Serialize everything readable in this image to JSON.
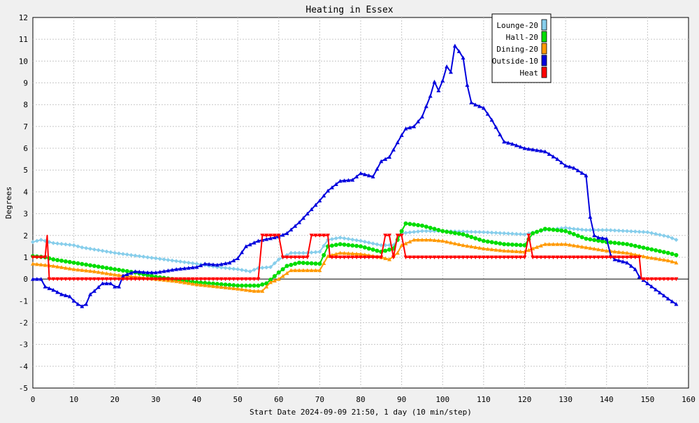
{
  "chart_data": {
    "type": "line",
    "title": "Heating in Essex",
    "xlabel": "Start Date 2024-09-09 21:50, 1 day (10 min/step)",
    "ylabel": "Degrees",
    "xlim": [
      0,
      160
    ],
    "ylim": [
      -5,
      12
    ],
    "x_ticks": [
      0,
      10,
      20,
      30,
      40,
      50,
      60,
      70,
      80,
      90,
      100,
      110,
      120,
      130,
      140,
      150,
      160
    ],
    "y_ticks": [
      -5,
      -4,
      -3,
      -2,
      -1,
      0,
      1,
      2,
      3,
      4,
      5,
      6,
      7,
      8,
      9,
      10,
      11,
      12
    ],
    "grid": true,
    "legend_position": "top-right",
    "series": [
      {
        "name": "Lounge-20",
        "color": "#87ceeb",
        "marker": "diamond",
        "points": [
          [
            0,
            1.7
          ],
          [
            2,
            1.8
          ],
          [
            5,
            1.65
          ],
          [
            10,
            1.55
          ],
          [
            12,
            1.45
          ],
          [
            20,
            1.2
          ],
          [
            30,
            0.95
          ],
          [
            40,
            0.7
          ],
          [
            45,
            0.55
          ],
          [
            50,
            0.45
          ],
          [
            53,
            0.35
          ],
          [
            55,
            0.5
          ],
          [
            58,
            0.55
          ],
          [
            60,
            0.9
          ],
          [
            63,
            1.2
          ],
          [
            67,
            1.2
          ],
          [
            70,
            1.25
          ],
          [
            72,
            1.8
          ],
          [
            75,
            1.9
          ],
          [
            80,
            1.75
          ],
          [
            85,
            1.55
          ],
          [
            88,
            1.55
          ],
          [
            90,
            2.1
          ],
          [
            95,
            2.2
          ],
          [
            100,
            2.2
          ],
          [
            110,
            2.15
          ],
          [
            120,
            2.05
          ],
          [
            125,
            2.25
          ],
          [
            130,
            2.35
          ],
          [
            132,
            2.3
          ],
          [
            135,
            2.25
          ],
          [
            140,
            2.25
          ],
          [
            145,
            2.2
          ],
          [
            150,
            2.15
          ],
          [
            155,
            1.95
          ],
          [
            157,
            1.8
          ]
        ]
      },
      {
        "name": "Hall-20",
        "color": "#00dd00",
        "marker": "circle",
        "points": [
          [
            0,
            1.05
          ],
          [
            3,
            1.0
          ],
          [
            5,
            0.9
          ],
          [
            10,
            0.75
          ],
          [
            15,
            0.6
          ],
          [
            20,
            0.45
          ],
          [
            25,
            0.3
          ],
          [
            30,
            0.1
          ],
          [
            40,
            -0.15
          ],
          [
            50,
            -0.3
          ],
          [
            55,
            -0.3
          ],
          [
            57,
            -0.2
          ],
          [
            60,
            0.3
          ],
          [
            62,
            0.6
          ],
          [
            65,
            0.75
          ],
          [
            70,
            0.7
          ],
          [
            72,
            1.5
          ],
          [
            75,
            1.6
          ],
          [
            80,
            1.5
          ],
          [
            85,
            1.25
          ],
          [
            88,
            1.4
          ],
          [
            90,
            2.2
          ],
          [
            91,
            2.55
          ],
          [
            95,
            2.45
          ],
          [
            100,
            2.2
          ],
          [
            105,
            2.05
          ],
          [
            110,
            1.75
          ],
          [
            115,
            1.6
          ],
          [
            120,
            1.55
          ],
          [
            122,
            2.1
          ],
          [
            125,
            2.3
          ],
          [
            130,
            2.2
          ],
          [
            135,
            1.85
          ],
          [
            140,
            1.7
          ],
          [
            145,
            1.6
          ],
          [
            150,
            1.4
          ],
          [
            155,
            1.2
          ],
          [
            157,
            1.1
          ]
        ]
      },
      {
        "name": "Dining-20",
        "color": "#ff9900",
        "marker": "triangle",
        "points": [
          [
            0,
            0.7
          ],
          [
            5,
            0.6
          ],
          [
            10,
            0.45
          ],
          [
            15,
            0.35
          ],
          [
            20,
            0.2
          ],
          [
            25,
            0.1
          ],
          [
            30,
            0.0
          ],
          [
            35,
            -0.1
          ],
          [
            40,
            -0.25
          ],
          [
            45,
            -0.35
          ],
          [
            50,
            -0.45
          ],
          [
            54,
            -0.55
          ],
          [
            56,
            -0.55
          ],
          [
            58,
            -0.15
          ],
          [
            60,
            0.0
          ],
          [
            63,
            0.4
          ],
          [
            67,
            0.4
          ],
          [
            70,
            0.4
          ],
          [
            72,
            1.05
          ],
          [
            75,
            1.2
          ],
          [
            80,
            1.15
          ],
          [
            85,
            1.0
          ],
          [
            87,
            0.9
          ],
          [
            89,
            1.2
          ],
          [
            90,
            1.55
          ],
          [
            93,
            1.8
          ],
          [
            97,
            1.8
          ],
          [
            100,
            1.75
          ],
          [
            105,
            1.55
          ],
          [
            110,
            1.4
          ],
          [
            115,
            1.3
          ],
          [
            120,
            1.25
          ],
          [
            122,
            1.4
          ],
          [
            125,
            1.6
          ],
          [
            130,
            1.6
          ],
          [
            135,
            1.45
          ],
          [
            140,
            1.3
          ],
          [
            145,
            1.2
          ],
          [
            150,
            1.0
          ],
          [
            155,
            0.85
          ],
          [
            157,
            0.75
          ]
        ]
      },
      {
        "name": "Outside-10",
        "color": "#0000dd",
        "marker": "triangle",
        "points": [
          [
            0,
            0.0
          ],
          [
            2,
            0.0
          ],
          [
            3,
            -0.35
          ],
          [
            5,
            -0.5
          ],
          [
            7,
            -0.7
          ],
          [
            9,
            -0.8
          ],
          [
            10,
            -1.0
          ],
          [
            11,
            -1.15
          ],
          [
            12,
            -1.25
          ],
          [
            13,
            -1.15
          ],
          [
            14,
            -0.7
          ],
          [
            15,
            -0.55
          ],
          [
            17,
            -0.2
          ],
          [
            19,
            -0.2
          ],
          [
            20,
            -0.35
          ],
          [
            21,
            -0.35
          ],
          [
            22,
            0.15
          ],
          [
            25,
            0.35
          ],
          [
            28,
            0.3
          ],
          [
            30,
            0.3
          ],
          [
            35,
            0.45
          ],
          [
            40,
            0.55
          ],
          [
            42,
            0.7
          ],
          [
            45,
            0.65
          ],
          [
            48,
            0.75
          ],
          [
            50,
            0.95
          ],
          [
            52,
            1.5
          ],
          [
            55,
            1.75
          ],
          [
            60,
            1.95
          ],
          [
            62,
            2.1
          ],
          [
            65,
            2.6
          ],
          [
            70,
            3.6
          ],
          [
            72,
            4.05
          ],
          [
            75,
            4.5
          ],
          [
            78,
            4.55
          ],
          [
            80,
            4.85
          ],
          [
            83,
            4.7
          ],
          [
            85,
            5.4
          ],
          [
            87,
            5.6
          ],
          [
            90,
            6.6
          ],
          [
            91,
            6.9
          ],
          [
            93,
            7.0
          ],
          [
            95,
            7.45
          ],
          [
            97,
            8.4
          ],
          [
            98,
            9.05
          ],
          [
            99,
            8.65
          ],
          [
            100,
            9.1
          ],
          [
            101,
            9.75
          ],
          [
            102,
            9.5
          ],
          [
            103,
            10.7
          ],
          [
            104,
            10.45
          ],
          [
            105,
            10.15
          ],
          [
            106,
            8.9
          ],
          [
            107,
            8.1
          ],
          [
            108,
            8.0
          ],
          [
            110,
            7.85
          ],
          [
            112,
            7.3
          ],
          [
            115,
            6.3
          ],
          [
            117,
            6.2
          ],
          [
            120,
            6.0
          ],
          [
            125,
            5.85
          ],
          [
            128,
            5.5
          ],
          [
            130,
            5.2
          ],
          [
            132,
            5.1
          ],
          [
            135,
            4.75
          ],
          [
            136,
            2.85
          ],
          [
            137,
            2.0
          ],
          [
            138,
            1.9
          ],
          [
            140,
            1.85
          ],
          [
            141,
            1.1
          ],
          [
            142,
            0.9
          ],
          [
            145,
            0.75
          ],
          [
            147,
            0.45
          ],
          [
            148,
            0.1
          ],
          [
            150,
            -0.2
          ],
          [
            155,
            -0.9
          ],
          [
            157,
            -1.15
          ]
        ]
      },
      {
        "name": "Heat",
        "color": "#ff0000",
        "marker": "triangle-down",
        "points": [
          [
            0,
            1.0
          ],
          [
            3,
            1.0
          ],
          [
            3.5,
            2.0
          ],
          [
            4,
            0.0
          ],
          [
            55,
            0.0
          ],
          [
            56,
            2.0
          ],
          [
            60,
            2.0
          ],
          [
            61,
            1.0
          ],
          [
            67,
            1.0
          ],
          [
            68,
            2.0
          ],
          [
            72,
            2.0
          ],
          [
            72.5,
            1.0
          ],
          [
            85,
            1.0
          ],
          [
            86,
            2.0
          ],
          [
            87,
            2.0
          ],
          [
            88,
            1.0
          ],
          [
            89,
            2.0
          ],
          [
            90,
            2.0
          ],
          [
            91,
            1.0
          ],
          [
            120,
            1.0
          ],
          [
            121,
            2.0
          ],
          [
            122,
            1.0
          ],
          [
            148,
            1.0
          ],
          [
            148.5,
            0.0
          ],
          [
            157,
            0.0
          ]
        ]
      }
    ]
  }
}
